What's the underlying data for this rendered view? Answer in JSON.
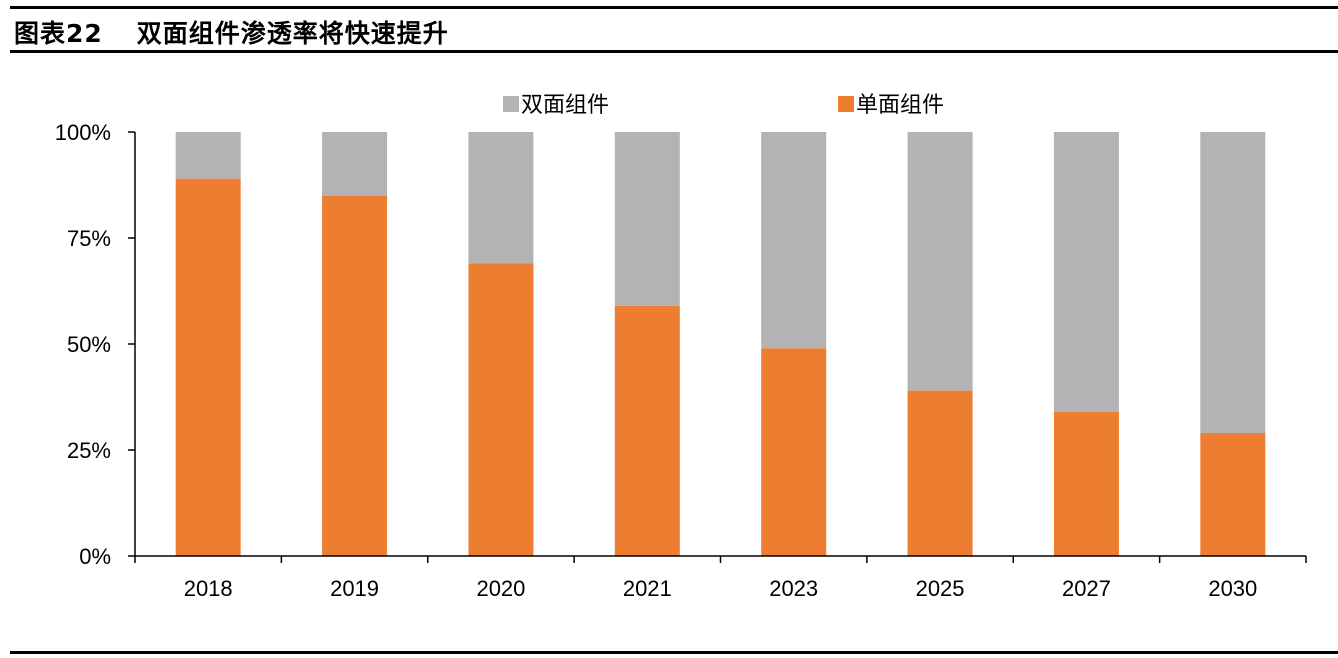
{
  "header": {
    "label": "图表22",
    "title": "双面组件渗透率将快速提升"
  },
  "chart_data": {
    "type": "bar",
    "stacked": true,
    "title": "",
    "xlabel": "",
    "ylabel": "",
    "categories": [
      "2018",
      "2019",
      "2020",
      "2021",
      "2023",
      "2025",
      "2027",
      "2030"
    ],
    "series": [
      {
        "name": "单面组件",
        "color": "#ED7D31",
        "values": [
          89,
          85,
          69,
          59,
          49,
          39,
          34,
          29
        ]
      },
      {
        "name": "双面组件",
        "color": "#B3B3B3",
        "values": [
          11,
          15,
          31,
          41,
          51,
          61,
          66,
          71
        ]
      }
    ],
    "legend_order": [
      "双面组件",
      "单面组件"
    ],
    "legend_position": "top",
    "ylim": [
      0,
      100
    ],
    "yticks": [
      {
        "value": 0,
        "label": "0%"
      },
      {
        "value": 25,
        "label": "25%"
      },
      {
        "value": 50,
        "label": "50%"
      },
      {
        "value": 75,
        "label": "75%"
      },
      {
        "value": 100,
        "label": "100%"
      }
    ],
    "grid": false
  }
}
